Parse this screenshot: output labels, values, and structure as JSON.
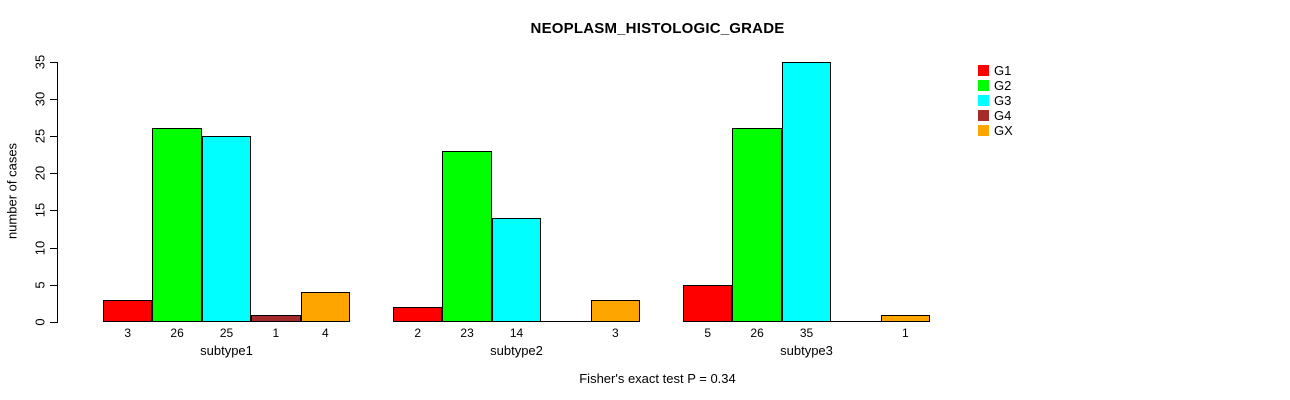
{
  "title": "NEOPLASM_HISTOLOGIC_GRADE",
  "caption": "Fisher's exact test P = 0.34",
  "chart_data": {
    "type": "bar",
    "title": "NEOPLASM_HISTOLOGIC_GRADE",
    "xlabel": "",
    "ylabel": "number of cases",
    "categories": [
      "subtype1",
      "subtype2",
      "subtype3"
    ],
    "series": [
      {
        "name": "G1",
        "color": "#FF0000",
        "values": [
          3,
          2,
          5
        ]
      },
      {
        "name": "G2",
        "color": "#00FF00",
        "values": [
          26,
          23,
          26
        ]
      },
      {
        "name": "G3",
        "color": "#00FFFF",
        "values": [
          25,
          14,
          35
        ]
      },
      {
        "name": "G4",
        "color": "#A52A2A",
        "values": [
          1,
          0,
          0
        ]
      },
      {
        "name": "GX",
        "color": "#FFA500",
        "values": [
          4,
          3,
          1
        ]
      }
    ],
    "ylim": [
      0,
      35
    ],
    "yticks": [
      0,
      5,
      10,
      15,
      20,
      25,
      30,
      35
    ],
    "grid": false,
    "bar_value_labels": true,
    "legend": {
      "position": "right",
      "entries": [
        "G1",
        "G2",
        "G3",
        "G4",
        "GX"
      ]
    },
    "annotation": "Fisher's exact test P = 0.34"
  }
}
